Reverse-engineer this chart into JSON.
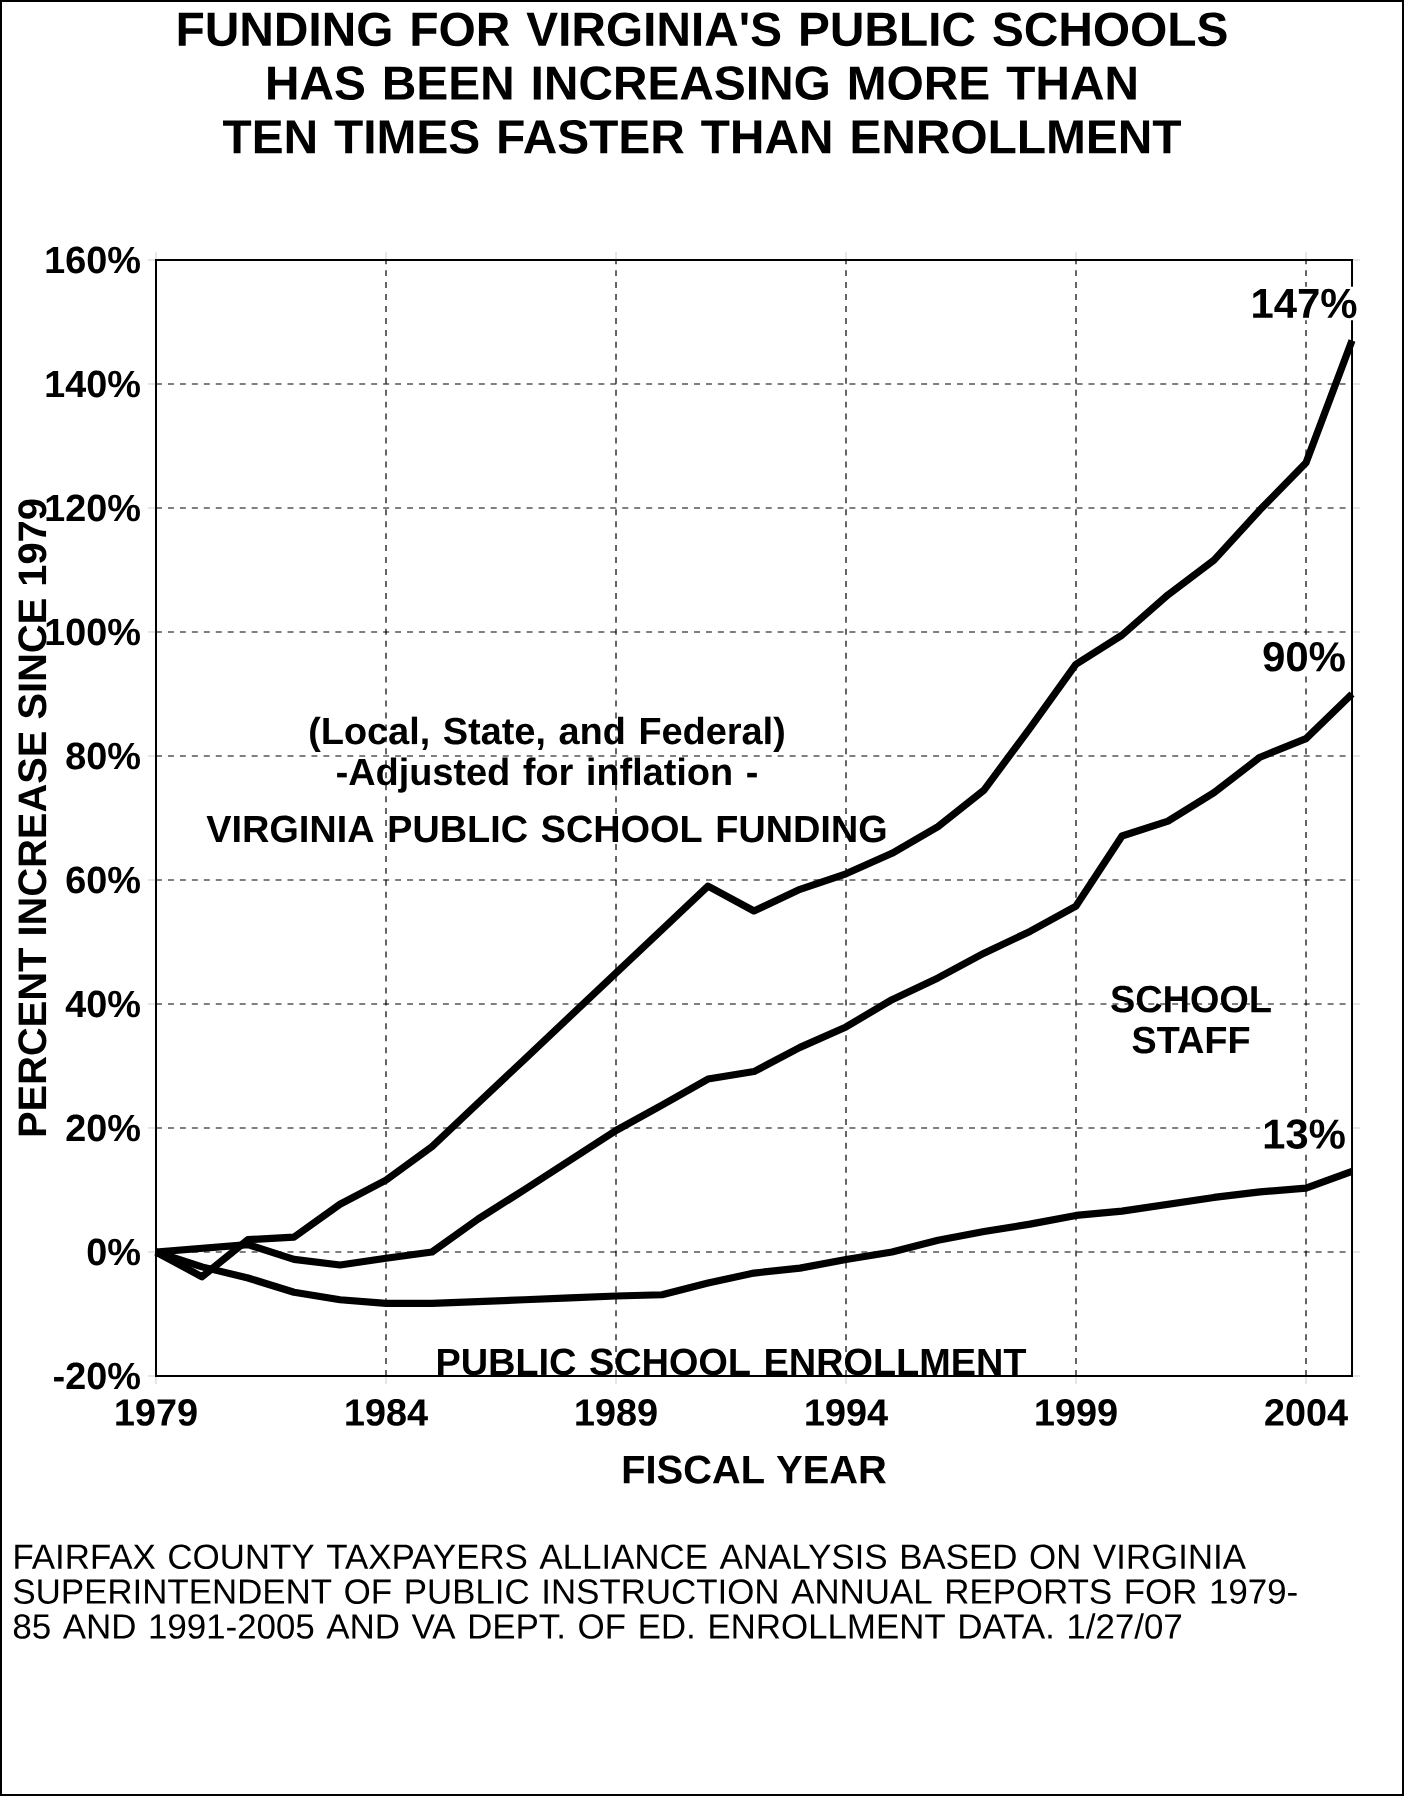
{
  "chart_data": {
    "type": "line",
    "title": "FUNDING FOR VIRGINIA'S PUBLIC SCHOOLS HAS BEEN INCREASING MORE THAN TEN TIMES FASTER THAN ENROLLMENT",
    "xlabel": "FISCAL YEAR",
    "ylabel": "PERCENT INCREASE SINCE 1979",
    "x": [
      1979,
      1980,
      1981,
      1982,
      1983,
      1984,
      1985,
      1986,
      1987,
      1988,
      1989,
      1990,
      1991,
      1992,
      1993,
      1994,
      1995,
      1996,
      1997,
      1998,
      1999,
      2000,
      2001,
      2002,
      2003,
      2004,
      2005
    ],
    "series": [
      {
        "name": "VIRGINIA PUBLIC SCHOOL FUNDING",
        "color": "#000000",
        "values": [
          0,
          -4,
          2,
          2.4,
          7.7,
          11.6,
          17,
          24,
          31,
          38,
          45,
          52,
          59,
          55,
          58.5,
          61,
          64.3,
          68.6,
          74.5,
          84.5,
          94.8,
          99.5,
          106,
          111.6,
          119.7,
          127.3,
          147
        ],
        "value_labels": [
          null,
          null,
          null,
          null,
          null,
          null,
          null,
          null,
          null,
          null,
          null,
          null,
          null,
          null,
          null,
          null,
          null,
          null,
          null,
          null,
          null,
          null,
          null,
          null,
          null,
          null,
          "147%"
        ]
      },
      {
        "name": "SCHOOL STAFF",
        "color": "#000000",
        "values": [
          0,
          0.6,
          1.2,
          -1.2,
          -2.1,
          -1,
          0,
          5.3,
          10,
          14.8,
          19.6,
          23.7,
          27.9,
          29.1,
          33,
          36.3,
          40.7,
          44.2,
          48.2,
          51.7,
          55.8,
          67.1,
          69.5,
          74.1,
          79.8,
          82.8,
          90
        ],
        "value_labels": [
          null,
          null,
          null,
          null,
          null,
          null,
          null,
          null,
          null,
          null,
          null,
          null,
          null,
          null,
          null,
          null,
          null,
          null,
          null,
          null,
          null,
          null,
          null,
          null,
          null,
          null,
          "90%"
        ]
      },
      {
        "name": "PUBLIC SCHOOL ENROLLMENT",
        "color": "#000000",
        "values": [
          0,
          -2.4,
          -4.2,
          -6.5,
          -7.7,
          -8.3,
          -8.3,
          -8,
          -7.7,
          -7.4,
          -7.1,
          -6.9,
          -5,
          -3.4,
          -2.6,
          -1.2,
          0,
          1.9,
          3.3,
          4.5,
          5.9,
          6.6,
          7.7,
          8.8,
          9.7,
          10.3,
          13
        ],
        "value_labels": [
          null,
          null,
          null,
          null,
          null,
          null,
          null,
          null,
          null,
          null,
          null,
          null,
          null,
          null,
          null,
          null,
          null,
          null,
          null,
          null,
          null,
          null,
          null,
          null,
          null,
          null,
          "13%"
        ]
      }
    ],
    "xlim": [
      1979,
      2005
    ],
    "xticks": [
      1979,
      1984,
      1989,
      1994,
      1999,
      2004
    ],
    "ylim": [
      -20,
      160
    ],
    "yticks": [
      {
        "value": -20,
        "label": "-20%"
      },
      {
        "value": 0,
        "label": "0%"
      },
      {
        "value": 20,
        "label": "20%"
      },
      {
        "value": 40,
        "label": "40%"
      },
      {
        "value": 60,
        "label": "60%"
      },
      {
        "value": 80,
        "label": "80%"
      },
      {
        "value": 100,
        "label": "100%"
      },
      {
        "value": 120,
        "label": "120%"
      },
      {
        "value": 140,
        "label": "140%"
      },
      {
        "value": 160,
        "label": "160%"
      }
    ],
    "grid": true,
    "line_style": "solid",
    "annotations": [
      "(Local, State, and Federal)",
      "-Adjusted for inflation -",
      "FAIRFAX COUNTY TAXPAYERS ALLIANCE ANALYSIS BASED ON VIRGINIA SUPERINTENDENT OF PUBLIC INSTRUCTION ANNUAL REPORTS FOR 1979-85 AND 1991-2005 AND VA DEPT. OF ED. ENROLLMENT DATA.  1/27/07"
    ]
  }
}
